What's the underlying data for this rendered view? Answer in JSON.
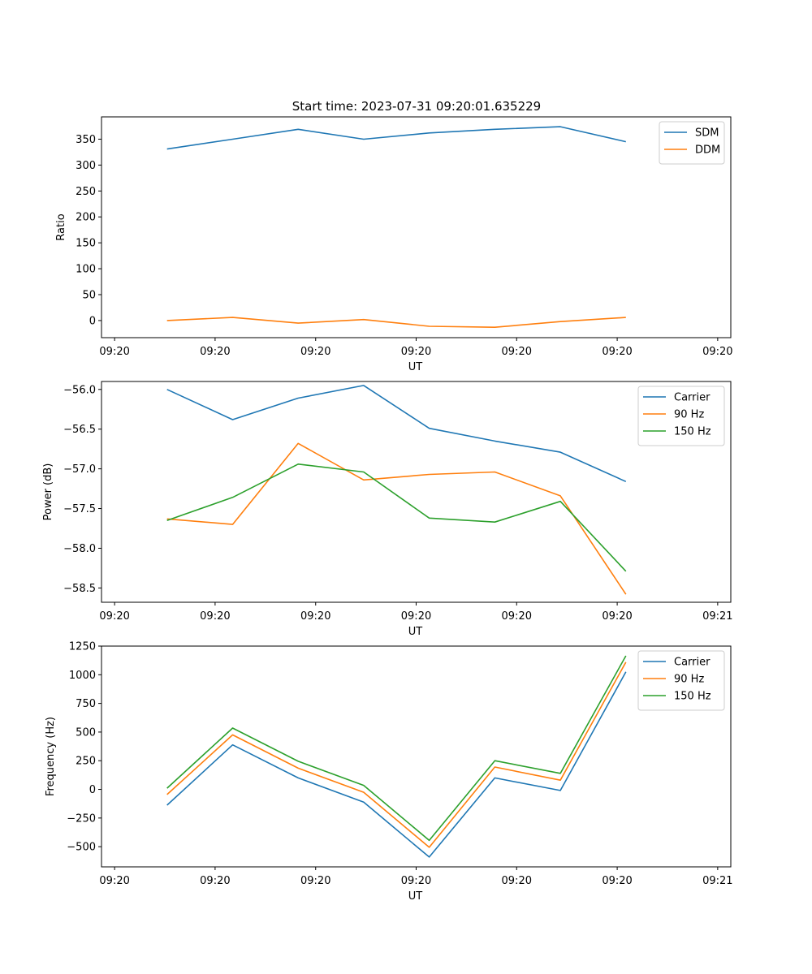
{
  "figure": {
    "suptitle": "Start time: 2023-07-31 09:20:01.635229"
  },
  "chart_data": [
    {
      "type": "line",
      "title": "Start time: 2023-07-31 09:20:01.635229",
      "xlabel": "UT",
      "ylabel": "Ratio",
      "x": [
        1,
        2,
        3,
        4,
        5,
        6,
        7,
        8
      ],
      "x_tick_labels": [
        "09:20",
        "09:20",
        "09:20",
        "09:20",
        "09:20",
        "09:20",
        "09:20"
      ],
      "x_tick_positions": [
        0.2,
        1.733,
        3.267,
        4.8,
        6.333,
        7.867,
        9.4
      ],
      "xlim": [
        0,
        9.6
      ],
      "ylim": [
        -33,
        393
      ],
      "y_ticks": [
        0,
        50,
        100,
        150,
        200,
        250,
        300,
        350
      ],
      "legend": "top-right",
      "series": [
        {
          "name": "SDM",
          "color": "#1f77b4",
          "values": [
            331,
            350,
            369,
            350,
            362,
            369,
            374,
            345
          ]
        },
        {
          "name": "DDM",
          "color": "#ff7f0e",
          "values": [
            0,
            6,
            -5,
            2,
            -11,
            -13,
            -2,
            6
          ]
        }
      ]
    },
    {
      "type": "line",
      "title": "",
      "xlabel": "UT",
      "ylabel": "Power (dB)",
      "x": [
        1,
        2,
        3,
        4,
        5,
        6,
        7,
        8
      ],
      "x_tick_labels": [
        "09:20",
        "09:20",
        "09:20",
        "09:20",
        "09:20",
        "09:20",
        "09:21"
      ],
      "x_tick_positions": [
        0.2,
        1.733,
        3.267,
        4.8,
        6.333,
        7.867,
        9.4
      ],
      "xlim": [
        0,
        9.6
      ],
      "ylim": [
        -58.68,
        -55.9
      ],
      "y_ticks": [
        -58.5,
        -58.0,
        -57.5,
        -57.0,
        -56.5,
        -56.0
      ],
      "y_tick_labels": [
        "−58.5",
        "−58.0",
        "−57.5",
        "−57.0",
        "−56.5",
        "−56.0"
      ],
      "legend": "top-right",
      "series": [
        {
          "name": "Carrier",
          "color": "#1f77b4",
          "values": [
            -56.0,
            -56.38,
            -56.11,
            -55.95,
            -56.49,
            -56.65,
            -56.79,
            -57.16
          ]
        },
        {
          "name": "90 Hz",
          "color": "#ff7f0e",
          "values": [
            -57.63,
            -57.7,
            -56.68,
            -57.14,
            -57.07,
            -57.04,
            -57.34,
            -58.58
          ]
        },
        {
          "name": "150 Hz",
          "color": "#2ca02c",
          "values": [
            -57.65,
            -57.36,
            -56.94,
            -57.04,
            -57.62,
            -57.67,
            -57.41,
            -58.29
          ]
        }
      ]
    },
    {
      "type": "line",
      "title": "",
      "xlabel": "UT",
      "ylabel": "Frequency (Hz)",
      "x": [
        1,
        2,
        3,
        4,
        5,
        6,
        7,
        8
      ],
      "x_tick_labels": [
        "09:20",
        "09:20",
        "09:20",
        "09:20",
        "09:20",
        "09:20",
        "09:21"
      ],
      "x_tick_positions": [
        0.2,
        1.733,
        3.267,
        4.8,
        6.333,
        7.867,
        9.4
      ],
      "xlim": [
        0,
        9.6
      ],
      "ylim": [
        -676,
        1250
      ],
      "y_ticks": [
        -500,
        -250,
        0,
        250,
        500,
        750,
        1000,
        1250
      ],
      "y_tick_labels": [
        "−500",
        "−250",
        "0",
        "250",
        "500",
        "750",
        "1000",
        "1250"
      ],
      "legend": "top-right",
      "series": [
        {
          "name": "Carrier",
          "color": "#1f77b4",
          "values": [
            -138,
            388,
            100,
            -112,
            -590,
            100,
            -10,
            1025
          ]
        },
        {
          "name": "90 Hz",
          "color": "#ff7f0e",
          "values": [
            -45,
            475,
            185,
            -25,
            -505,
            195,
            80,
            1110
          ]
        },
        {
          "name": "150 Hz",
          "color": "#2ca02c",
          "values": [
            10,
            535,
            245,
            35,
            -445,
            250,
            140,
            1165
          ]
        }
      ]
    }
  ]
}
